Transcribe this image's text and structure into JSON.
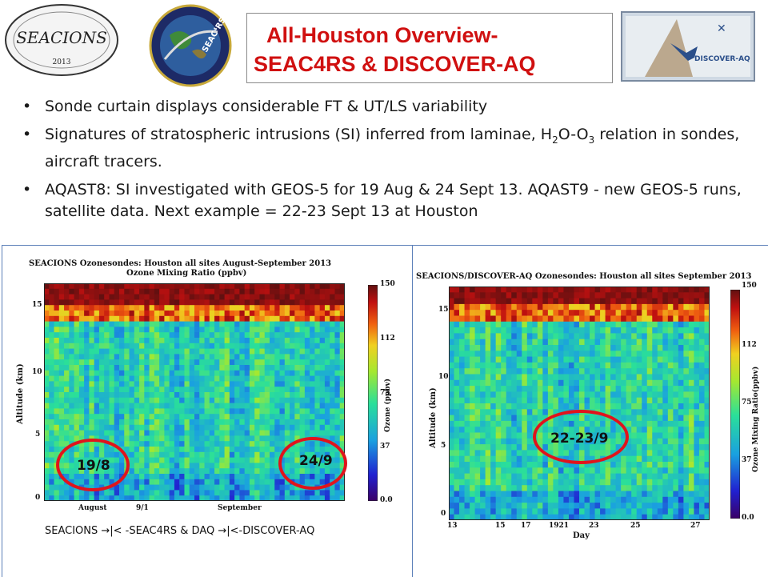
{
  "header": {
    "title_line1": "All-Houston Overview-",
    "title_line2": "SEAC4RS & DISCOVER-AQ",
    "logo_left_text": "SEACIONS",
    "logo_left_year": "2013",
    "logo_center_text": "SEAC⁴RS",
    "logo_right_text": "DISCOVER-AQ"
  },
  "bullets": [
    {
      "parts": [
        "Sonde curtain displays considerable FT & UT/LS variability"
      ]
    },
    {
      "pre": "Signatures of stratospheric intrusions (SI) inferred from laminae, H",
      "sub1": "2",
      "mid": "O-O",
      "sub2": "3",
      "post": " relation in sondes, aircraft tracers."
    },
    {
      "parts": [
        "AQAST8: SI investigated with GEOS-5 for 19 Aug & 24 Sept 13.  AQAST9 - new GEOS-5 runs, satellite data.  Next example = 22-23 Sept 13 at Houston"
      ]
    }
  ],
  "left_chart": {
    "title1": "SEACIONS Ozonesondes: Houston all sites August-September 2013",
    "title2": "Ozone Mixing Ratio (ppbv)",
    "ylabel": "Altitude (km)",
    "yticks": [
      "15",
      "10",
      "5",
      "0"
    ],
    "xticks": [
      "August",
      "9/1",
      "September"
    ],
    "cbar_label": "Ozone (ppbv)",
    "cbar_ticks": [
      "150",
      "112",
      "75",
      "37",
      "0.0"
    ],
    "markers": [
      "19/8",
      "24/9"
    ]
  },
  "right_chart": {
    "title": "SEACIONS/DISCOVER-AQ Ozonesondes: Houston all sites September 2013",
    "ylabel": "Altitude (km)",
    "yticks": [
      "15",
      "10",
      "5",
      "0"
    ],
    "xticks": [
      "13",
      "15",
      "17",
      "1921",
      "23",
      "25",
      "27"
    ],
    "xlabel": "Day",
    "cbar_label": "Ozone Mixing Ratio(ppbv)",
    "cbar_ticks": [
      "150",
      "112",
      "75",
      "37",
      "0.0"
    ],
    "markers": [
      "22-23/9"
    ]
  },
  "caption": "SEACIONS  →|< -SEAC4RS  &  DAQ  →|<-DISCOVER-AQ",
  "colors": {
    "title_red": "#d01010",
    "ring_red": "#e0141c",
    "panel_border": "#5b7fb8"
  }
}
